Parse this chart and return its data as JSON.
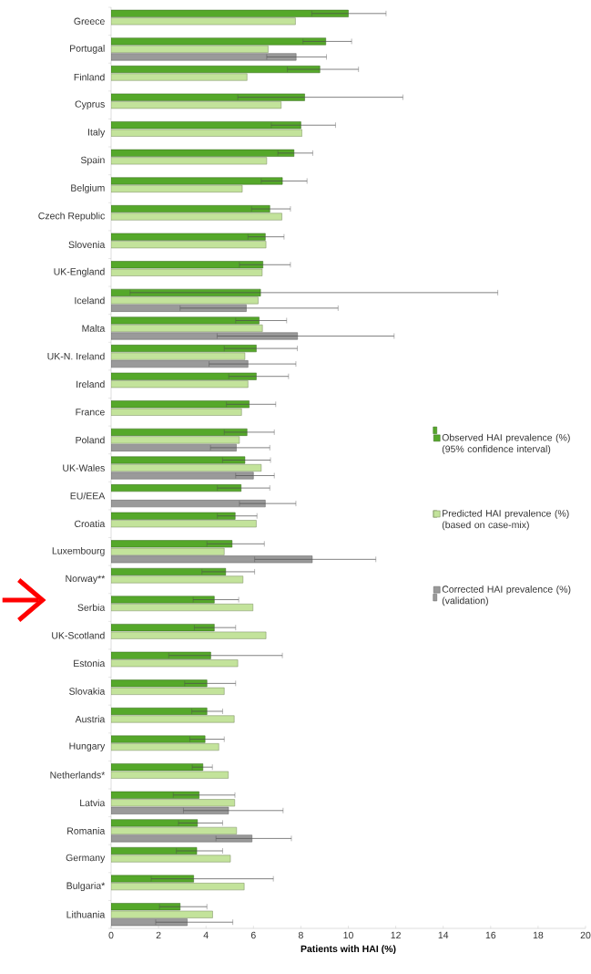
{
  "chart_data": {
    "type": "bar",
    "orientation": "horizontal",
    "xlabel": "Patients with HAI (%)",
    "categories": [
      "Greece",
      "Portugal",
      "Finland",
      "Cyprus",
      "Italy",
      "Spain",
      "Belgium",
      "Czech Republic",
      "Slovenia",
      "UK-England",
      "Iceland",
      "Malta",
      "UK-N. Ireland",
      "Ireland",
      "France",
      "Poland",
      "UK-Wales",
      "EU/EEA",
      "Croatia",
      "Luxembourg",
      "Norway**",
      "Serbia",
      "UK-Scotland",
      "Estonia",
      "Slovakia",
      "Austria",
      "Hungary",
      "Netherlands*",
      "Latvia",
      "Romania",
      "Germany",
      "Bulgaria*",
      "Lithuania"
    ],
    "series": [
      {
        "name": "Observed HAI prevalence (%) (95% confidence interval)",
        "color": "#55a82a",
        "values": [
          10.0,
          9.05,
          8.8,
          8.16,
          8.0,
          7.71,
          7.22,
          6.69,
          6.5,
          6.4,
          6.3,
          6.24,
          6.12,
          6.12,
          5.82,
          5.73,
          5.64,
          5.48,
          5.23,
          5.1,
          4.83,
          4.35,
          4.35,
          4.2,
          4.04,
          4.04,
          3.96,
          3.87,
          3.71,
          3.64,
          3.61,
          3.48,
          2.91
        ],
        "errors": [
          [
            8.46,
            11.59
          ],
          [
            8.09,
            10.14
          ],
          [
            7.43,
            10.43
          ],
          [
            5.34,
            12.3
          ],
          [
            6.75,
            9.46
          ],
          [
            7.03,
            8.5
          ],
          [
            6.33,
            8.26
          ],
          [
            5.92,
            7.56
          ],
          [
            5.77,
            7.29
          ],
          [
            5.41,
            7.56
          ],
          [
            0.8,
            16.3
          ],
          [
            5.25,
            7.4
          ],
          [
            4.77,
            7.85
          ],
          [
            4.96,
            7.48
          ],
          [
            4.86,
            6.94
          ],
          [
            4.77,
            6.88
          ],
          [
            4.7,
            6.72
          ],
          [
            4.48,
            6.69
          ],
          [
            4.48,
            6.15
          ],
          [
            4.04,
            6.46
          ],
          [
            3.83,
            6.05
          ],
          [
            3.46,
            5.38
          ],
          [
            3.51,
            5.25
          ],
          [
            2.43,
            7.22
          ],
          [
            3.1,
            5.25
          ],
          [
            3.4,
            4.7
          ],
          [
            3.32,
            4.77
          ],
          [
            3.42,
            4.27
          ],
          [
            2.62,
            5.22
          ],
          [
            2.84,
            4.7
          ],
          [
            2.75,
            4.7
          ],
          [
            1.69,
            6.84
          ],
          [
            2.04,
            4.04
          ]
        ]
      },
      {
        "name": "Predicted HAI prevalence (%) (based on case-mix)",
        "color": "#c3e39b",
        "values": [
          7.77,
          6.62,
          5.73,
          7.17,
          8.05,
          6.56,
          5.53,
          7.2,
          6.53,
          6.37,
          6.2,
          6.38,
          5.64,
          5.77,
          5.5,
          5.41,
          6.33,
          null,
          6.12,
          4.77,
          5.56,
          5.98,
          6.53,
          5.34,
          4.77,
          5.19,
          4.54,
          4.94,
          5.21,
          5.29,
          5.03,
          5.61,
          4.28
        ]
      },
      {
        "name": "Corrected HAI prevalence (%) (validation)",
        "color": "#9a9a9a",
        "values": [
          null,
          7.8,
          null,
          null,
          null,
          null,
          null,
          null,
          null,
          null,
          5.7,
          7.86,
          5.77,
          null,
          null,
          5.28,
          6.0,
          6.5,
          null,
          8.48,
          null,
          null,
          null,
          null,
          null,
          null,
          null,
          null,
          4.95,
          5.94,
          null,
          null,
          3.21
        ],
        "errors": [
          null,
          [
            6.56,
            9.08
          ],
          null,
          null,
          null,
          null,
          null,
          null,
          null,
          null,
          [
            2.91,
            9.57
          ],
          [
            4.47,
            11.93
          ],
          [
            4.13,
            7.79
          ],
          null,
          null,
          [
            4.19,
            6.69
          ],
          [
            5.25,
            6.88
          ],
          [
            5.41,
            7.79
          ],
          null,
          [
            6.05,
            11.16
          ],
          null,
          null,
          null,
          null,
          null,
          null,
          null,
          null,
          [
            3.05,
            7.25
          ],
          [
            4.42,
            7.6
          ],
          null,
          null,
          [
            1.88,
            5.13
          ]
        ]
      }
    ],
    "xlim": [
      0,
      20
    ],
    "xticks": [
      0,
      2,
      4,
      6,
      8,
      10,
      12,
      14,
      16,
      18,
      20
    ],
    "legend": "right",
    "grid": false
  }
}
